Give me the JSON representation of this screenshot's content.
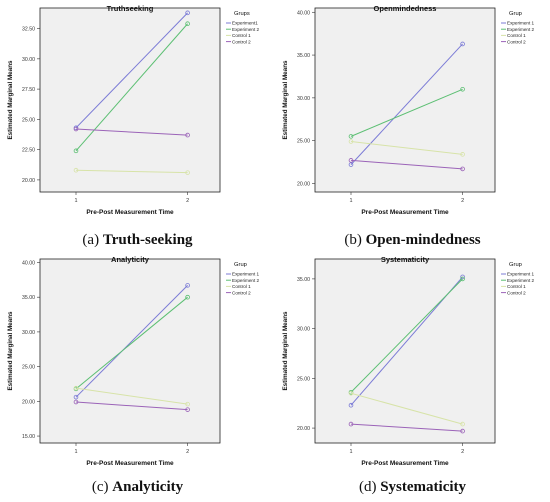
{
  "chart_data": [
    {
      "type": "line",
      "title": "Truthseeking",
      "xlabel": "Pre-Post Measurement Time",
      "ylabel": "Estimated Marginal Means",
      "legend_title": "Grups",
      "categories": [
        "1",
        "2"
      ],
      "yticks": [
        "20.00",
        "22.50",
        "25.00",
        "27.50",
        "30.00",
        "32.50"
      ],
      "ylim": [
        19.0,
        34.2
      ],
      "series": [
        {
          "name": "Experiment1",
          "values": [
            24.3,
            33.8
          ]
        },
        {
          "name": "Experiment 2",
          "values": [
            22.4,
            32.9
          ]
        },
        {
          "name": "Control 1",
          "values": [
            20.8,
            20.6
          ]
        },
        {
          "name": "Control 2",
          "values": [
            24.2,
            23.7
          ]
        }
      ],
      "legend_position": "right",
      "caption_label": "(a)",
      "caption_text": "Truth-seeking"
    },
    {
      "type": "line",
      "title": "Openmindedness",
      "xlabel": "Pre-Post Measurement Time",
      "ylabel": "Estimated Marginal Means",
      "legend_title": "Grup",
      "categories": [
        "1",
        "2"
      ],
      "yticks": [
        "20.00",
        "25.00",
        "30.00",
        "35.00",
        "40.00"
      ],
      "ylim": [
        19.0,
        40.5
      ],
      "series": [
        {
          "name": "Experiment 1",
          "values": [
            22.2,
            36.3
          ]
        },
        {
          "name": "Experiment 2",
          "values": [
            25.5,
            31.0
          ]
        },
        {
          "name": "Control 1",
          "values": [
            24.9,
            23.4
          ]
        },
        {
          "name": "Control 2",
          "values": [
            22.7,
            21.7
          ]
        }
      ],
      "legend_position": "right",
      "caption_label": "(b)",
      "caption_text": "Open-mindedness"
    },
    {
      "type": "line",
      "title": "Analyticity",
      "xlabel": "Pre-Post Measurement Time",
      "ylabel": "Estimated Marginal Means",
      "legend_title": "Grup",
      "categories": [
        "1",
        "2"
      ],
      "yticks": [
        "15.00",
        "20.00",
        "25.00",
        "30.00",
        "35.00",
        "40.00"
      ],
      "ylim": [
        14.0,
        40.5
      ],
      "series": [
        {
          "name": "Experiment 1",
          "values": [
            20.6,
            36.7
          ]
        },
        {
          "name": "Experiment 2",
          "values": [
            21.8,
            35.0
          ]
        },
        {
          "name": "Control 1",
          "values": [
            21.9,
            19.6
          ]
        },
        {
          "name": "Control 2",
          "values": [
            19.9,
            18.8
          ]
        }
      ],
      "legend_position": "right",
      "caption_label": "(c)",
      "caption_text": "Analyticity"
    },
    {
      "type": "line",
      "title": "Systematicity",
      "xlabel": "Pre-Post Measurement Time",
      "ylabel": "Estimated Marginal Means",
      "legend_title": "Grup",
      "categories": [
        "1",
        "2"
      ],
      "yticks": [
        "20.00",
        "25.00",
        "30.00",
        "35.00"
      ],
      "ylim": [
        18.5,
        37.0
      ],
      "series": [
        {
          "name": "Experiment 1",
          "values": [
            22.3,
            35.2
          ]
        },
        {
          "name": "Experiment 2",
          "values": [
            23.6,
            35.0
          ]
        },
        {
          "name": "Control 1",
          "values": [
            23.5,
            20.4
          ]
        },
        {
          "name": "Control 2",
          "values": [
            20.4,
            19.7
          ]
        }
      ],
      "legend_position": "right",
      "caption_label": "(d)",
      "caption_text": "Systematicity"
    }
  ],
  "colors": {
    "series": [
      "#7b7bd6",
      "#5cbf73",
      "#d7e3a8",
      "#9b63b8"
    ],
    "plot_background": "#f0f0f0",
    "axis": "#222222"
  }
}
